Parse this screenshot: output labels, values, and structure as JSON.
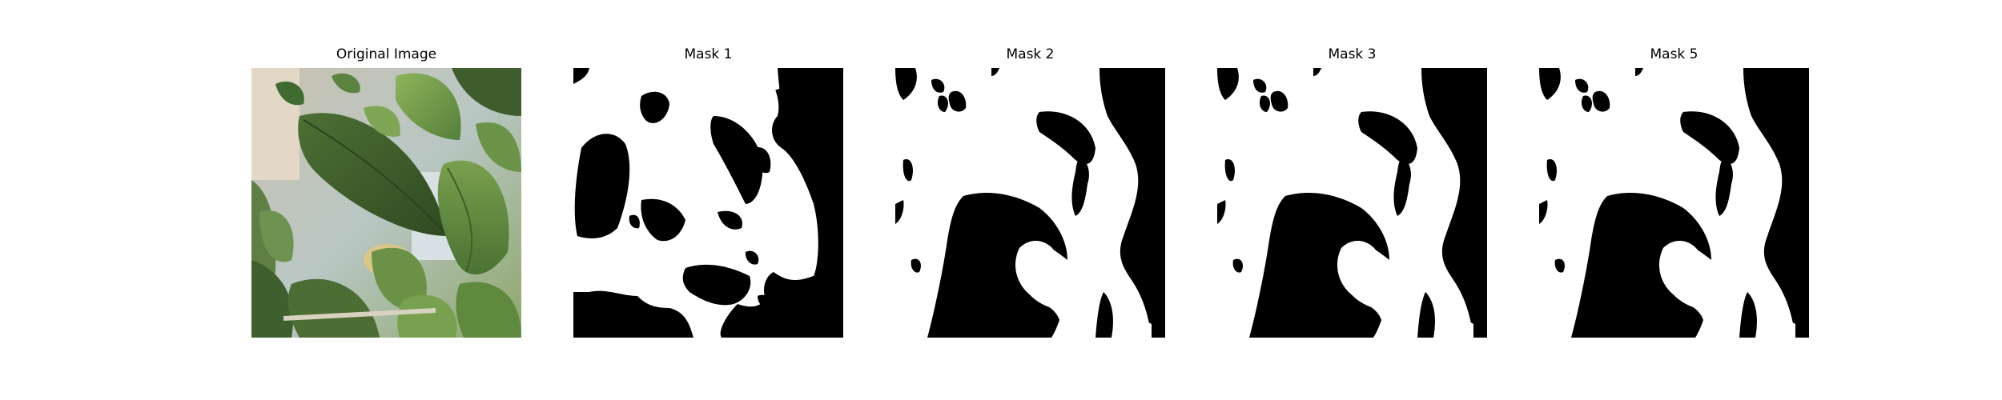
{
  "figure": {
    "panels": [
      {
        "title": "Original Image"
      },
      {
        "title": "Mask 1"
      },
      {
        "title": "Mask 2"
      },
      {
        "title": "Mask 3"
      },
      {
        "title": "Mask 5"
      }
    ]
  },
  "colors": {
    "mask_foreground": "#ffffff",
    "mask_background": "#000000",
    "leaf_dark": "#3f5f2c",
    "leaf_mid": "#5f8a3e",
    "leaf_light": "#8fae64",
    "background_light": "#d9d2c3"
  }
}
